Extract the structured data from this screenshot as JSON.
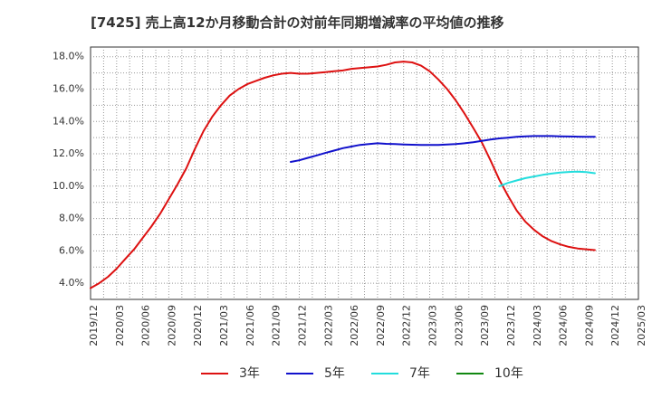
{
  "chart_data": {
    "type": "line",
    "title": "[7425]  売上高12か月移動合計の対前年同期増減率の平均値の推移",
    "xlabel": "",
    "ylabel": "",
    "x_ticks": [
      "2019/12",
      "2020/03",
      "2020/06",
      "2020/09",
      "2020/12",
      "2021/03",
      "2021/06",
      "2021/09",
      "2021/12",
      "2022/03",
      "2022/06",
      "2022/09",
      "2022/12",
      "2023/03",
      "2023/06",
      "2023/09",
      "2023/12",
      "2024/03",
      "2024/06",
      "2024/09",
      "2024/12",
      "2025/03"
    ],
    "y_ticks": [
      "4.0%",
      "6.0%",
      "8.0%",
      "10.0%",
      "12.0%",
      "14.0%",
      "16.0%",
      "18.0%"
    ],
    "y_tick_values": [
      4,
      6,
      8,
      10,
      12,
      14,
      16,
      18
    ],
    "ylim": [
      3.0,
      18.6
    ],
    "xlim": [
      0,
      21
    ],
    "grid": true,
    "legend_position": "bottom",
    "series": [
      {
        "name": "3年",
        "color": "#dd1111",
        "points": [
          [
            0,
            3.7
          ],
          [
            0.33,
            4.0
          ],
          [
            0.67,
            4.4
          ],
          [
            1,
            4.9
          ],
          [
            1.33,
            5.5
          ],
          [
            1.67,
            6.1
          ],
          [
            2,
            6.8
          ],
          [
            2.33,
            7.5
          ],
          [
            2.67,
            8.3
          ],
          [
            3,
            9.2
          ],
          [
            3.33,
            10.1
          ],
          [
            3.67,
            11.1
          ],
          [
            4,
            12.3
          ],
          [
            4.33,
            13.4
          ],
          [
            4.67,
            14.3
          ],
          [
            5,
            15.0
          ],
          [
            5.33,
            15.6
          ],
          [
            5.67,
            16.0
          ],
          [
            6,
            16.3
          ],
          [
            6.33,
            16.5
          ],
          [
            6.67,
            16.7
          ],
          [
            7,
            16.85
          ],
          [
            7.33,
            16.95
          ],
          [
            7.67,
            17.0
          ],
          [
            8,
            16.95
          ],
          [
            8.33,
            16.95
          ],
          [
            8.67,
            17.0
          ],
          [
            9,
            17.05
          ],
          [
            9.33,
            17.1
          ],
          [
            9.67,
            17.15
          ],
          [
            10,
            17.25
          ],
          [
            10.33,
            17.3
          ],
          [
            10.67,
            17.35
          ],
          [
            11,
            17.4
          ],
          [
            11.33,
            17.5
          ],
          [
            11.67,
            17.65
          ],
          [
            12,
            17.7
          ],
          [
            12.33,
            17.65
          ],
          [
            12.67,
            17.45
          ],
          [
            13,
            17.1
          ],
          [
            13.33,
            16.6
          ],
          [
            13.67,
            16.0
          ],
          [
            14,
            15.3
          ],
          [
            14.33,
            14.5
          ],
          [
            14.67,
            13.6
          ],
          [
            15,
            12.7
          ],
          [
            15.33,
            11.6
          ],
          [
            15.67,
            10.4
          ],
          [
            16,
            9.4
          ],
          [
            16.33,
            8.5
          ],
          [
            16.67,
            7.8
          ],
          [
            17,
            7.3
          ],
          [
            17.33,
            6.9
          ],
          [
            17.67,
            6.6
          ],
          [
            18,
            6.4
          ],
          [
            18.33,
            6.25
          ],
          [
            18.67,
            6.15
          ],
          [
            19,
            6.1
          ],
          [
            19.33,
            6.05
          ]
        ]
      },
      {
        "name": "5年",
        "color": "#1111cc",
        "points": [
          [
            7.67,
            11.5
          ],
          [
            8,
            11.6
          ],
          [
            8.33,
            11.75
          ],
          [
            8.67,
            11.9
          ],
          [
            9,
            12.05
          ],
          [
            9.33,
            12.2
          ],
          [
            9.67,
            12.35
          ],
          [
            10,
            12.45
          ],
          [
            10.33,
            12.55
          ],
          [
            10.67,
            12.6
          ],
          [
            11,
            12.65
          ],
          [
            11.33,
            12.62
          ],
          [
            11.67,
            12.6
          ],
          [
            12,
            12.58
          ],
          [
            12.33,
            12.56
          ],
          [
            12.67,
            12.55
          ],
          [
            13,
            12.55
          ],
          [
            13.33,
            12.55
          ],
          [
            13.67,
            12.57
          ],
          [
            14,
            12.6
          ],
          [
            14.33,
            12.65
          ],
          [
            14.67,
            12.72
          ],
          [
            15,
            12.8
          ],
          [
            15.33,
            12.88
          ],
          [
            15.67,
            12.95
          ],
          [
            16,
            13.0
          ],
          [
            16.33,
            13.05
          ],
          [
            16.67,
            13.08
          ],
          [
            17,
            13.1
          ],
          [
            17.33,
            13.1
          ],
          [
            17.67,
            13.1
          ],
          [
            18,
            13.08
          ],
          [
            18.33,
            13.07
          ],
          [
            18.67,
            13.06
          ],
          [
            19,
            13.05
          ],
          [
            19.33,
            13.05
          ]
        ]
      },
      {
        "name": "7年",
        "color": "#22dddd",
        "points": [
          [
            15.67,
            10.0
          ],
          [
            16,
            10.2
          ],
          [
            16.33,
            10.35
          ],
          [
            16.67,
            10.5
          ],
          [
            17,
            10.6
          ],
          [
            17.33,
            10.7
          ],
          [
            17.67,
            10.78
          ],
          [
            18,
            10.84
          ],
          [
            18.33,
            10.88
          ],
          [
            18.67,
            10.9
          ],
          [
            19,
            10.87
          ],
          [
            19.33,
            10.8
          ]
        ]
      },
      {
        "name": "10年",
        "color": "#118811",
        "points": []
      }
    ]
  }
}
